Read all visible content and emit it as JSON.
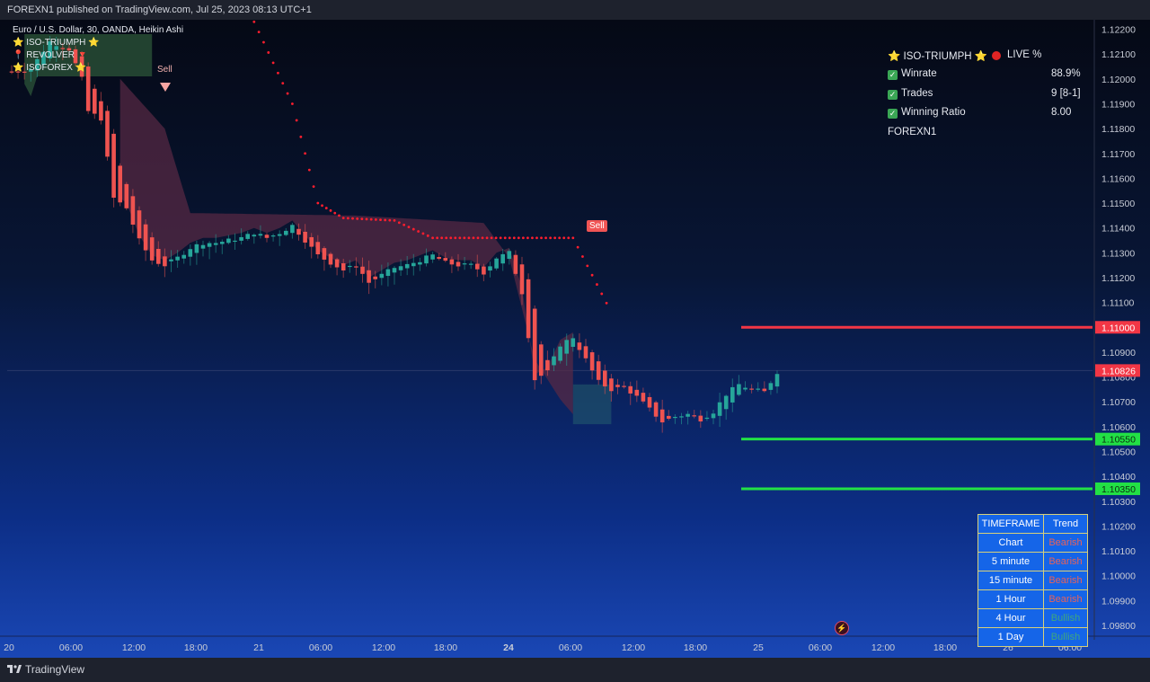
{
  "header": {
    "published_text": "FOREXN1 published on TradingView.com, Jul 25, 2023 08:13 UTC+1"
  },
  "footer": {
    "brand": "TradingView"
  },
  "legend": {
    "symbol_line": "Euro / U.S. Dollar, 30, OANDA, Heikin Ashi",
    "indicators": [
      "⭐ ISO-TRIUMPH ⭐",
      "📍 REVOLVER 🔻",
      "⭐ ISOFOREX ⭐"
    ]
  },
  "signals": {
    "sell_label_1": "Sell",
    "sell_label_2": "Sell"
  },
  "stats": {
    "title_left": "⭐ ISO-TRIUMPH ⭐",
    "title_right": "LIVE %",
    "rows": [
      {
        "label": "Winrate",
        "value": "88.9%"
      },
      {
        "label": "Trades",
        "value": "9 [8-1]"
      },
      {
        "label": "Winning Ratio",
        "value": "8.00"
      }
    ],
    "author": "FOREXN1"
  },
  "trend_table": {
    "headers": [
      "TIMEFRAME",
      "Trend"
    ],
    "rows": [
      {
        "timeframe": "Chart",
        "trend": "Bearish"
      },
      {
        "timeframe": "5 minute",
        "trend": "Bearish"
      },
      {
        "timeframe": "15 minute",
        "trend": "Bearish"
      },
      {
        "timeframe": "1 Hour",
        "trend": "Bearish"
      },
      {
        "timeframe": "4 Hour",
        "trend": "Bullish"
      },
      {
        "timeframe": "1 Day",
        "trend": "Bullish"
      }
    ]
  },
  "colors": {
    "bull": "#26a69a",
    "bear": "#ef5350",
    "stop_line": "#f23645",
    "target_line": "#22e045",
    "trail_dots": "#ff1e2e",
    "cloud": "#5a2a44",
    "current_price_label": "#f23645",
    "table_bg": "#1565e8",
    "table_border": "#d7d07a",
    "bullish_text": "#3fa77e",
    "bearish_text": "#e8615a"
  },
  "chart_data": {
    "type": "candlestick",
    "subtype": "Heikin Ashi",
    "symbol": "Euro / U.S. Dollar",
    "timeframe": "30",
    "exchange": "OANDA",
    "ylim": [
      1.0975,
      1.1223
    ],
    "y_ticks": [
      "1.12200",
      "1.12100",
      "1.12000",
      "1.11900",
      "1.11800",
      "1.11700",
      "1.11600",
      "1.11500",
      "1.11400",
      "1.11300",
      "1.11200",
      "1.11100",
      "1.11000",
      "1.10900",
      "1.10800",
      "1.10700",
      "1.10600",
      "1.10500",
      "1.10400",
      "1.10300",
      "1.10200",
      "1.10100",
      "1.10000",
      "1.09900",
      "1.09800"
    ],
    "x_ticks": [
      "20",
      "06:00",
      "12:00",
      "18:00",
      "21",
      "06:00",
      "12:00",
      "18:00",
      "24",
      "06:00",
      "12:00",
      "18:00",
      "25",
      "06:00",
      "12:00",
      "18:00",
      "26",
      "06:00"
    ],
    "x_tick_bold": "24",
    "close_path": [
      [
        0,
        1.1203
      ],
      [
        3,
        1.1204
      ],
      [
        6,
        1.1215
      ],
      [
        9,
        1.1212
      ],
      [
        11,
        1.12
      ],
      [
        12,
        1.1187
      ],
      [
        14,
        1.1184
      ],
      [
        16,
        1.1152
      ],
      [
        18,
        1.1148
      ],
      [
        20,
        1.1135
      ],
      [
        22,
        1.1127
      ],
      [
        24,
        1.1125
      ],
      [
        26,
        1.1128
      ],
      [
        28,
        1.1132
      ],
      [
        30,
        1.1134
      ],
      [
        32,
        1.1134
      ],
      [
        34,
        1.1135
      ],
      [
        36,
        1.1136
      ],
      [
        38,
        1.1138
      ],
      [
        40,
        1.1136
      ],
      [
        42,
        1.1138
      ],
      [
        44,
        1.1141
      ],
      [
        46,
        1.1135
      ],
      [
        48,
        1.1129
      ],
      [
        50,
        1.1126
      ],
      [
        52,
        1.1123
      ],
      [
        54,
        1.1125
      ],
      [
        56,
        1.1118
      ],
      [
        58,
        1.1121
      ],
      [
        60,
        1.1124
      ],
      [
        62,
        1.1125
      ],
      [
        64,
        1.1127
      ],
      [
        66,
        1.1129
      ],
      [
        68,
        1.1126
      ],
      [
        70,
        1.1125
      ],
      [
        72,
        1.1125
      ],
      [
        74,
        1.1122
      ],
      [
        76,
        1.1128
      ],
      [
        78,
        1.113
      ],
      [
        80,
        1.1114
      ],
      [
        82,
        1.1079
      ],
      [
        84,
        1.1082
      ],
      [
        86,
        1.1093
      ],
      [
        88,
        1.1096
      ],
      [
        90,
        1.1087
      ],
      [
        92,
        1.1078
      ],
      [
        94,
        1.1075
      ],
      [
        96,
        1.1076
      ],
      [
        98,
        1.1072
      ],
      [
        100,
        1.1067
      ],
      [
        102,
        1.1062
      ],
      [
        104,
        1.1064
      ],
      [
        106,
        1.1065
      ],
      [
        108,
        1.1063
      ],
      [
        110,
        1.1066
      ],
      [
        112,
        1.1073
      ],
      [
        114,
        1.1077
      ],
      [
        116,
        1.1075
      ],
      [
        118,
        1.1074
      ],
      [
        120,
        1.1082
      ]
    ],
    "current_price": "1.10826",
    "levels": [
      {
        "name": "stop",
        "value": "1.11000",
        "color": "#f23645"
      },
      {
        "name": "target 1",
        "value": "1.10550",
        "color": "#22e045"
      },
      {
        "name": "target 2",
        "value": "1.10350",
        "color": "#22e045"
      }
    ],
    "trailing_stop_dots": [
      [
        38,
        1.1223
      ],
      [
        44,
        1.119
      ],
      [
        48,
        1.115
      ],
      [
        52,
        1.1144
      ],
      [
        60,
        1.1143
      ],
      [
        66,
        1.1136
      ],
      [
        88,
        1.1136
      ],
      [
        94,
        1.1106
      ]
    ],
    "cloud_upper": [
      [
        17,
        1.12
      ],
      [
        24,
        1.118
      ],
      [
        28,
        1.1146
      ],
      [
        54,
        1.1145
      ],
      [
        74,
        1.1142
      ],
      [
        78,
        1.1128
      ],
      [
        82,
        1.1087
      ],
      [
        86,
        1.1071
      ],
      [
        88,
        1.1065
      ]
    ],
    "sell_signals": [
      {
        "label": "Sell",
        "x": 18,
        "price": 1.1194
      },
      {
        "label": "Sell",
        "x": 66,
        "price": 1.114
      }
    ],
    "target_box": {
      "x0": 88,
      "x1": 94,
      "top": 1.1077,
      "bottom": 1.1061
    }
  }
}
